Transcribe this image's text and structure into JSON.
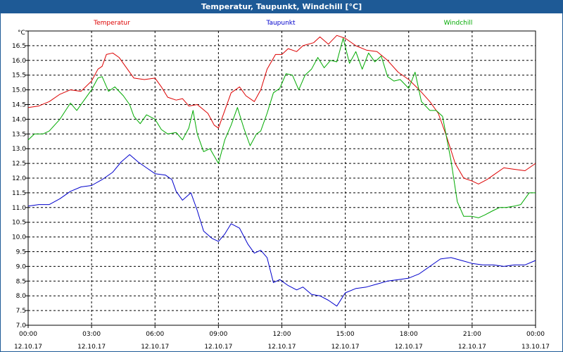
{
  "window": {
    "title": "Temperatur, Taupunkt, Windchill [°C]"
  },
  "chart_data": {
    "type": "line",
    "title": "Temperatur, Taupunkt, Windchill [°C]",
    "ylabel": "°C",
    "xlabel": "",
    "ylim": [
      7.0,
      17.0
    ],
    "ystep": 0.5,
    "xlim": [
      0,
      24
    ],
    "grid": true,
    "legend": [
      {
        "name": "Temperatur",
        "color": "#dd0000"
      },
      {
        "name": "Taupunkt",
        "color": "#0000cc"
      },
      {
        "name": "Windchill",
        "color": "#00aa00"
      }
    ],
    "x_ticks": [
      {
        "x": 0,
        "time": "00:00",
        "date": "12.10.17"
      },
      {
        "x": 3,
        "time": "03:00",
        "date": "12.10.17"
      },
      {
        "x": 6,
        "time": "06:00",
        "date": "12.10.17"
      },
      {
        "x": 9,
        "time": "09:00",
        "date": "12.10.17"
      },
      {
        "x": 12,
        "time": "12:00",
        "date": "12.10.17"
      },
      {
        "x": 15,
        "time": "15:00",
        "date": "12.10.17"
      },
      {
        "x": 18,
        "time": "18:00",
        "date": "12.10.17"
      },
      {
        "x": 21,
        "time": "21:00",
        "date": "12.10.17"
      },
      {
        "x": 24,
        "time": "00:00",
        "date": "13.10.17"
      }
    ],
    "series": [
      {
        "name": "Temperatur",
        "color": "#dd0000",
        "points": [
          [
            0,
            14.4
          ],
          [
            0.5,
            14.45
          ],
          [
            1,
            14.6
          ],
          [
            1.5,
            14.85
          ],
          [
            2,
            15.0
          ],
          [
            2.5,
            14.95
          ],
          [
            3,
            15.3
          ],
          [
            3.3,
            15.7
          ],
          [
            3.5,
            15.8
          ],
          [
            3.7,
            16.2
          ],
          [
            4,
            16.25
          ],
          [
            4.3,
            16.1
          ],
          [
            4.6,
            15.8
          ],
          [
            5,
            15.4
          ],
          [
            5.5,
            15.35
          ],
          [
            6,
            15.4
          ],
          [
            6.3,
            15.1
          ],
          [
            6.6,
            14.75
          ],
          [
            7,
            14.65
          ],
          [
            7.3,
            14.7
          ],
          [
            7.6,
            14.45
          ],
          [
            8,
            14.5
          ],
          [
            8.5,
            14.2
          ],
          [
            8.8,
            13.8
          ],
          [
            9,
            13.7
          ],
          [
            9.3,
            14.3
          ],
          [
            9.6,
            14.9
          ],
          [
            10,
            15.1
          ],
          [
            10.3,
            14.8
          ],
          [
            10.7,
            14.6
          ],
          [
            11,
            15.0
          ],
          [
            11.3,
            15.7
          ],
          [
            11.7,
            16.2
          ],
          [
            12,
            16.2
          ],
          [
            12.3,
            16.4
          ],
          [
            12.7,
            16.3
          ],
          [
            13,
            16.5
          ],
          [
            13.5,
            16.6
          ],
          [
            13.8,
            16.8
          ],
          [
            14.2,
            16.55
          ],
          [
            14.6,
            16.85
          ],
          [
            15,
            16.75
          ],
          [
            15.5,
            16.5
          ],
          [
            16,
            16.35
          ],
          [
            16.5,
            16.3
          ],
          [
            17,
            16.0
          ],
          [
            17.5,
            15.6
          ],
          [
            18,
            15.35
          ],
          [
            18.5,
            15.0
          ],
          [
            19,
            14.6
          ],
          [
            19.4,
            14.2
          ],
          [
            19.8,
            13.4
          ],
          [
            20.2,
            12.5
          ],
          [
            20.6,
            12.0
          ],
          [
            21,
            11.9
          ],
          [
            21.3,
            11.8
          ],
          [
            21.7,
            11.95
          ],
          [
            22,
            12.1
          ],
          [
            22.5,
            12.35
          ],
          [
            23,
            12.3
          ],
          [
            23.5,
            12.25
          ],
          [
            24,
            12.5
          ]
        ]
      },
      {
        "name": "Taupunkt",
        "color": "#0000cc",
        "points": [
          [
            0,
            11.05
          ],
          [
            0.5,
            11.1
          ],
          [
            1,
            11.1
          ],
          [
            1.5,
            11.3
          ],
          [
            2,
            11.55
          ],
          [
            2.5,
            11.7
          ],
          [
            3,
            11.75
          ],
          [
            3.5,
            11.95
          ],
          [
            4,
            12.2
          ],
          [
            4.4,
            12.55
          ],
          [
            4.8,
            12.8
          ],
          [
            5.2,
            12.55
          ],
          [
            5.6,
            12.35
          ],
          [
            6,
            12.15
          ],
          [
            6.5,
            12.1
          ],
          [
            6.8,
            11.95
          ],
          [
            7,
            11.55
          ],
          [
            7.3,
            11.25
          ],
          [
            7.7,
            11.5
          ],
          [
            8,
            10.9
          ],
          [
            8.3,
            10.2
          ],
          [
            8.7,
            9.95
          ],
          [
            9,
            9.85
          ],
          [
            9.3,
            10.1
          ],
          [
            9.6,
            10.45
          ],
          [
            10,
            10.3
          ],
          [
            10.4,
            9.75
          ],
          [
            10.7,
            9.45
          ],
          [
            11,
            9.55
          ],
          [
            11.3,
            9.3
          ],
          [
            11.6,
            8.45
          ],
          [
            11.9,
            8.55
          ],
          [
            12.3,
            8.35
          ],
          [
            12.7,
            8.2
          ],
          [
            13,
            8.3
          ],
          [
            13.4,
            8.05
          ],
          [
            13.8,
            8.0
          ],
          [
            14.2,
            7.85
          ],
          [
            14.6,
            7.65
          ],
          [
            15,
            8.1
          ],
          [
            15.5,
            8.25
          ],
          [
            16,
            8.3
          ],
          [
            16.5,
            8.4
          ],
          [
            17,
            8.5
          ],
          [
            17.5,
            8.55
          ],
          [
            18,
            8.6
          ],
          [
            18.5,
            8.75
          ],
          [
            19,
            9.0
          ],
          [
            19.5,
            9.25
          ],
          [
            20,
            9.3
          ],
          [
            20.5,
            9.2
          ],
          [
            21,
            9.1
          ],
          [
            21.5,
            9.05
          ],
          [
            22,
            9.05
          ],
          [
            22.5,
            9.0
          ],
          [
            23,
            9.05
          ],
          [
            23.5,
            9.05
          ],
          [
            24,
            9.2
          ]
        ]
      },
      {
        "name": "Windchill",
        "color": "#00aa00",
        "points": [
          [
            0,
            13.3
          ],
          [
            0.3,
            13.5
          ],
          [
            0.7,
            13.5
          ],
          [
            1,
            13.6
          ],
          [
            1.5,
            14.0
          ],
          [
            2,
            14.55
          ],
          [
            2.3,
            14.3
          ],
          [
            2.6,
            14.6
          ],
          [
            3,
            15.0
          ],
          [
            3.3,
            15.4
          ],
          [
            3.5,
            15.45
          ],
          [
            3.8,
            14.95
          ],
          [
            4.1,
            15.1
          ],
          [
            4.5,
            14.8
          ],
          [
            4.8,
            14.5
          ],
          [
            5,
            14.1
          ],
          [
            5.3,
            13.85
          ],
          [
            5.6,
            14.15
          ],
          [
            6,
            14.0
          ],
          [
            6.3,
            13.65
          ],
          [
            6.6,
            13.5
          ],
          [
            7,
            13.55
          ],
          [
            7.3,
            13.3
          ],
          [
            7.6,
            13.7
          ],
          [
            7.8,
            14.3
          ],
          [
            8,
            13.5
          ],
          [
            8.3,
            12.9
          ],
          [
            8.6,
            13.0
          ],
          [
            9,
            12.5
          ],
          [
            9.3,
            13.3
          ],
          [
            9.6,
            13.8
          ],
          [
            9.9,
            14.4
          ],
          [
            10.2,
            13.7
          ],
          [
            10.5,
            13.1
          ],
          [
            10.8,
            13.5
          ],
          [
            11,
            13.6
          ],
          [
            11.3,
            14.2
          ],
          [
            11.6,
            14.9
          ],
          [
            11.9,
            15.05
          ],
          [
            12.2,
            15.55
          ],
          [
            12.5,
            15.5
          ],
          [
            12.8,
            15.0
          ],
          [
            13.1,
            15.5
          ],
          [
            13.4,
            15.7
          ],
          [
            13.7,
            16.1
          ],
          [
            14.0,
            15.75
          ],
          [
            14.3,
            16.0
          ],
          [
            14.6,
            15.95
          ],
          [
            14.9,
            16.75
          ],
          [
            15.2,
            15.9
          ],
          [
            15.5,
            16.3
          ],
          [
            15.8,
            15.7
          ],
          [
            16.1,
            16.25
          ],
          [
            16.4,
            15.95
          ],
          [
            16.7,
            16.15
          ],
          [
            17.0,
            15.45
          ],
          [
            17.3,
            15.3
          ],
          [
            17.6,
            15.35
          ],
          [
            18.0,
            15.05
          ],
          [
            18.3,
            15.6
          ],
          [
            18.6,
            14.6
          ],
          [
            19.0,
            14.3
          ],
          [
            19.3,
            14.3
          ],
          [
            19.6,
            14.1
          ],
          [
            20.0,
            12.6
          ],
          [
            20.3,
            11.2
          ],
          [
            20.6,
            10.7
          ],
          [
            21,
            10.7
          ],
          [
            21.3,
            10.65
          ],
          [
            21.6,
            10.75
          ],
          [
            22,
            10.9
          ],
          [
            22.3,
            11.0
          ],
          [
            22.6,
            11.0
          ],
          [
            23,
            11.05
          ],
          [
            23.3,
            11.1
          ],
          [
            23.7,
            11.5
          ],
          [
            24,
            11.5
          ]
        ]
      }
    ]
  }
}
